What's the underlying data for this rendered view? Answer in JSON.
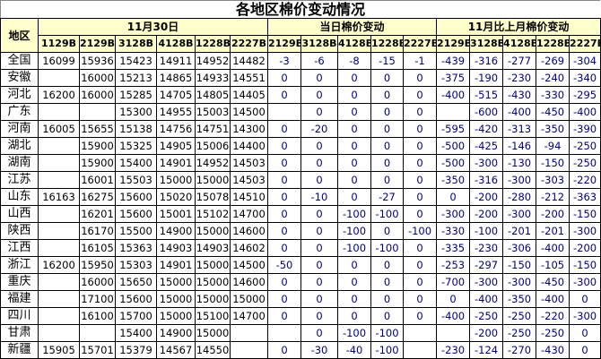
{
  "title": "各地区棉价变动情况",
  "headers": {
    "region": "地区",
    "group_price": "11月30日",
    "group_day": "当日棉价变动",
    "group_month": "11月比上月棉价变动",
    "price_cols": [
      "1129B",
      "2129B",
      "3128B",
      "4128B",
      "1228B",
      "2227B"
    ],
    "day_cols": [
      "2129B",
      "3128B",
      "4128B",
      "1228B",
      "2227B"
    ],
    "month_cols": [
      "2129B",
      "3128B",
      "4128B",
      "1228B",
      "2227B"
    ]
  },
  "colors": {
    "header_bg": "#FFFFCC",
    "change_text": "#000080"
  },
  "rows": [
    {
      "region": "全国",
      "price": [
        "16099",
        "15936",
        "15423",
        "14911",
        "14952",
        "14482"
      ],
      "day": [
        "-3",
        "-6",
        "-8",
        "-15",
        "-1"
      ],
      "month": [
        "-439",
        "-316",
        "-277",
        "-269",
        "-304"
      ]
    },
    {
      "region": "安徽",
      "price": [
        "",
        "16000",
        "15213",
        "14865",
        "14933",
        "14551"
      ],
      "day": [
        "0",
        "0",
        "0",
        "0",
        "0"
      ],
      "month": [
        "-375",
        "-190",
        "-230",
        "-240",
        "-340"
      ]
    },
    {
      "region": "河北",
      "price": [
        "16200",
        "16000",
        "15285",
        "14705",
        "14805",
        "14405"
      ],
      "day": [
        "0",
        "0",
        "0",
        "0",
        "0"
      ],
      "month": [
        "-400",
        "-515",
        "-430",
        "-330",
        "-295"
      ]
    },
    {
      "region": "广东",
      "price": [
        "",
        "",
        "15300",
        "14955",
        "15003",
        "14500"
      ],
      "day": [
        "",
        "0",
        "0",
        "0",
        "0"
      ],
      "month": [
        "",
        "-600",
        "-400",
        "-450",
        "-400"
      ]
    },
    {
      "region": "河南",
      "price": [
        "16005",
        "15655",
        "15138",
        "14756",
        "14751",
        "14300"
      ],
      "day": [
        "0",
        "-20",
        "0",
        "0",
        "0"
      ],
      "month": [
        "-595",
        "-420",
        "-313",
        "-350",
        "-390"
      ]
    },
    {
      "region": "湖北",
      "price": [
        "",
        "15900",
        "15325",
        "14905",
        "15006",
        "14400"
      ],
      "day": [
        "0",
        "0",
        "0",
        "0",
        "0"
      ],
      "month": [
        "-500",
        "-425",
        "-146",
        "-94",
        "-250"
      ]
    },
    {
      "region": "湖南",
      "price": [
        "",
        "15900",
        "15400",
        "14901",
        "14952",
        "14503"
      ],
      "day": [
        "0",
        "0",
        "0",
        "0",
        "0"
      ],
      "month": [
        "-500",
        "-300",
        "-130",
        "-150",
        "-250"
      ]
    },
    {
      "region": "江苏",
      "price": [
        "",
        "16001",
        "15503",
        "15000",
        "15000",
        "14503"
      ],
      "day": [
        "0",
        "0",
        "0",
        "0",
        "0"
      ],
      "month": [
        "-350",
        "-316",
        "-300",
        "-303",
        "-220"
      ]
    },
    {
      "region": "山东",
      "price": [
        "16163",
        "16275",
        "15600",
        "15020",
        "15078",
        "14510"
      ],
      "day": [
        "0",
        "-10",
        "0",
        "-27",
        "0"
      ],
      "month": [
        "0",
        "-200",
        "-280",
        "-212",
        "-363"
      ]
    },
    {
      "region": "山西",
      "price": [
        "",
        "16201",
        "15600",
        "15001",
        "15102",
        "14700"
      ],
      "day": [
        "0",
        "0",
        "-100",
        "-100",
        "0"
      ],
      "month": [
        "-300",
        "-200",
        "-300",
        "-200",
        "-150"
      ]
    },
    {
      "region": "陕西",
      "price": [
        "",
        "16170",
        "15500",
        "14900",
        "15000",
        "14600"
      ],
      "day": [
        "0",
        "0",
        "-100",
        "0",
        "-100"
      ],
      "month": [
        "-330",
        "-100",
        "-201",
        "-201",
        "-300"
      ]
    },
    {
      "region": "江西",
      "price": [
        "",
        "16105",
        "15363",
        "14903",
        "14903",
        "14602"
      ],
      "day": [
        "0",
        "0",
        "-100",
        "-100",
        "0"
      ],
      "month": [
        "-335",
        "-230",
        "-306",
        "-400",
        "-200"
      ]
    },
    {
      "region": "浙江",
      "price": [
        "16200",
        "15950",
        "15303",
        "14901",
        "15000",
        "14500"
      ],
      "day": [
        "-50",
        "0",
        "0",
        "0",
        "0"
      ],
      "month": [
        "-253",
        "-297",
        "-150",
        "-105",
        "-150"
      ]
    },
    {
      "region": "重庆",
      "price": [
        "",
        "16000",
        "15650",
        "15000",
        "15000",
        "14600"
      ],
      "day": [
        "0",
        "0",
        "0",
        "0",
        "0"
      ],
      "month": [
        "-700",
        "-300",
        "-300",
        "-450",
        "-300"
      ]
    },
    {
      "region": "福建",
      "price": [
        "",
        "17100",
        "15600",
        "15000",
        "15000",
        "15000"
      ],
      "day": [
        "0",
        "0",
        "0",
        "0",
        "0"
      ],
      "month": [
        "0",
        "-400",
        "-350",
        "-400",
        "0"
      ]
    },
    {
      "region": "四川",
      "price": [
        "",
        "16100",
        "15700",
        "15000",
        "15100",
        "14700"
      ],
      "day": [
        "0",
        "0",
        "0",
        "0",
        "0"
      ],
      "month": [
        "-400",
        "-250",
        "-250",
        "-220",
        "-300"
      ]
    },
    {
      "region": "甘肃",
      "price": [
        "",
        "",
        "15400",
        "14900",
        "15000",
        ""
      ],
      "day": [
        "",
        "0",
        "-100",
        "-100",
        ""
      ],
      "month": [
        "",
        "-200",
        "-250",
        "-250",
        "0"
      ]
    },
    {
      "region": "新疆",
      "price": [
        "15905",
        "15701",
        "15379",
        "14567",
        "14550",
        ""
      ],
      "day": [
        "0",
        "-30",
        "-40",
        "-100",
        ""
      ],
      "month": [
        "-230",
        "-124",
        "-270",
        "-430",
        "0"
      ]
    }
  ]
}
